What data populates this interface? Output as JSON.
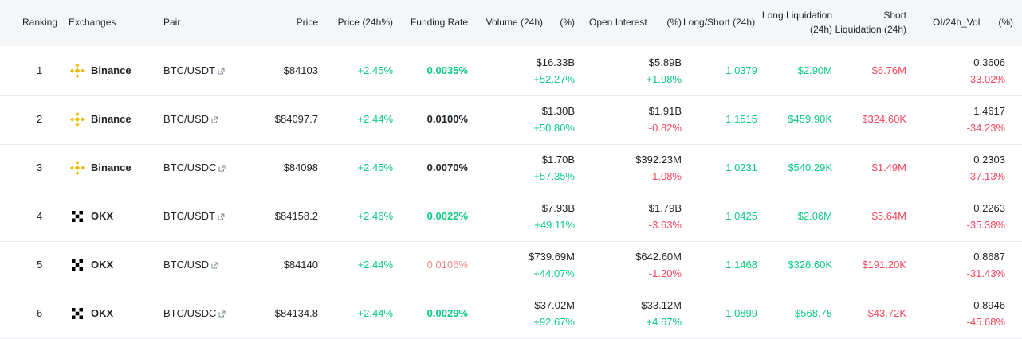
{
  "header": {
    "ranking": "Ranking",
    "exchanges": "Exchanges",
    "pair": "Pair",
    "price": "Price",
    "price_24h": "Price (24h%)",
    "funding_rate": "Funding Rate",
    "volume_24h": "Volume (24h)",
    "volume_pct": "(%)",
    "open_interest": "Open Interest",
    "oi_pct": "(%)",
    "long_short": "Long/Short (24h)",
    "long_liq_1": "Long Liquidation",
    "long_liq_2": "(24h)",
    "short_liq_1": "Short",
    "short_liq_2": "Liquidation (24h)",
    "oi_vol": "OI/24h_Vol",
    "oi_vol_pct": "(%)"
  },
  "colors": {
    "green": "#0ecb81",
    "red": "#f6465d",
    "binance_yellow": "#f0b90b",
    "okx_black": "#000000"
  },
  "rows": [
    {
      "rank": "1",
      "exchange": "Binance",
      "logo": "binance-logo",
      "pair": "BTC/USDT",
      "price": "$84103",
      "price_change": "+2.45%",
      "funding": "0.0035%",
      "funding_tone": "green",
      "volume": "$16.33B",
      "volume_change": "+52.27%",
      "volume_tone": "green",
      "oi": "$5.89B",
      "oi_change": "+1.98%",
      "oi_tone": "green",
      "long_short": "1.0379",
      "long_liq": "$2.90M",
      "short_liq": "$6.76M",
      "oi_vol": "0.3606",
      "oi_vol_change": "-33.02%"
    },
    {
      "rank": "2",
      "exchange": "Binance",
      "logo": "binance-logo",
      "pair": "BTC/USD",
      "price": "$84097.7",
      "price_change": "+2.44%",
      "funding": "0.0100%",
      "funding_tone": "neutral",
      "volume": "$1.30B",
      "volume_change": "+50.80%",
      "volume_tone": "green",
      "oi": "$1.91B",
      "oi_change": "-0.82%",
      "oi_tone": "red",
      "long_short": "1.1515",
      "long_liq": "$459.90K",
      "short_liq": "$324.60K",
      "oi_vol": "1.4617",
      "oi_vol_change": "-34.23%"
    },
    {
      "rank": "3",
      "exchange": "Binance",
      "logo": "binance-logo",
      "pair": "BTC/USDC",
      "price": "$84098",
      "price_change": "+2.45%",
      "funding": "0.0070%",
      "funding_tone": "neutral",
      "volume": "$1.70B",
      "volume_change": "+57.35%",
      "volume_tone": "green",
      "oi": "$392.23M",
      "oi_change": "-1.08%",
      "oi_tone": "red",
      "long_short": "1.0231",
      "long_liq": "$540.29K",
      "short_liq": "$1.49M",
      "oi_vol": "0.2303",
      "oi_vol_change": "-37.13%"
    },
    {
      "rank": "4",
      "exchange": "OKX",
      "logo": "okx-logo",
      "pair": "BTC/USDT",
      "price": "$84158.2",
      "price_change": "+2.46%",
      "funding": "0.0022%",
      "funding_tone": "green",
      "volume": "$7.93B",
      "volume_change": "+49.11%",
      "volume_tone": "green",
      "oi": "$1.79B",
      "oi_change": "-3.63%",
      "oi_tone": "red",
      "long_short": "1.0425",
      "long_liq": "$2.06M",
      "short_liq": "$5.64M",
      "oi_vol": "0.2263",
      "oi_vol_change": "-35.38%"
    },
    {
      "rank": "5",
      "exchange": "OKX",
      "logo": "okx-logo",
      "pair": "BTC/USD",
      "price": "$84140",
      "price_change": "+2.44%",
      "funding": "0.0106%",
      "funding_tone": "pink",
      "volume": "$739.69M",
      "volume_change": "+44.07%",
      "volume_tone": "green",
      "oi": "$642.60M",
      "oi_change": "-1.20%",
      "oi_tone": "red",
      "long_short": "1.1468",
      "long_liq": "$326.60K",
      "short_liq": "$191.20K",
      "oi_vol": "0.8687",
      "oi_vol_change": "-31.43%"
    },
    {
      "rank": "6",
      "exchange": "OKX",
      "logo": "okx-logo",
      "pair": "BTC/USDC",
      "price": "$84134.8",
      "price_change": "+2.44%",
      "funding": "0.0029%",
      "funding_tone": "green",
      "volume": "$37.02M",
      "volume_change": "+92.67%",
      "volume_tone": "green",
      "oi": "$33.12M",
      "oi_change": "+4.67%",
      "oi_tone": "green",
      "long_short": "1.0899",
      "long_liq": "$568.78",
      "short_liq": "$43.72K",
      "oi_vol": "0.8946",
      "oi_vol_change": "-45.68%"
    }
  ]
}
